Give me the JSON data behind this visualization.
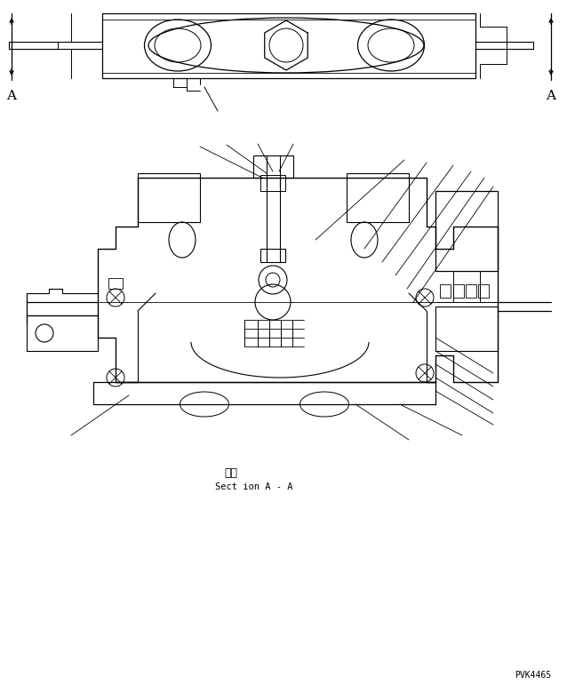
{
  "bg_color": "#ffffff",
  "line_color": "#000000",
  "fig_width": 6.47,
  "fig_height": 7.71,
  "dpi": 100,
  "label_A_left": "A",
  "label_A_right": "A",
  "section_label_jp": "断面",
  "section_label_en": "Sect ion A - A",
  "part_number": "PVK4465"
}
